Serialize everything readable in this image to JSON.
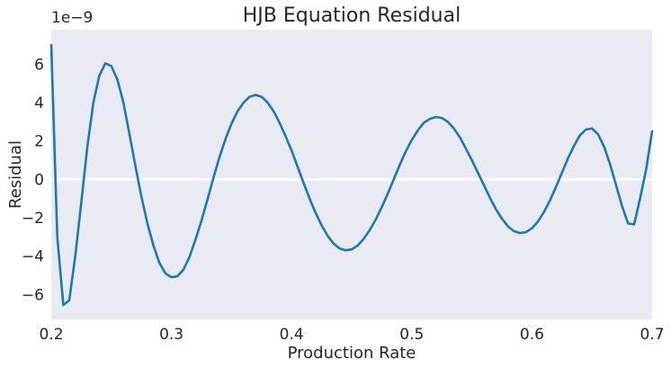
{
  "chart_data": {
    "type": "line",
    "title": "HJB Equation Residual",
    "xlabel": "Production Rate",
    "ylabel": "Residual",
    "y_offset_label": "1e−9",
    "xlim": [
      0.2,
      0.7
    ],
    "ylim": [
      -7.3,
      7.8
    ],
    "xticks": [
      0.2,
      0.3,
      0.4,
      0.5,
      0.6,
      0.7
    ],
    "xtick_labels": [
      "0.2",
      "0.3",
      "0.4",
      "0.5",
      "0.6",
      "0.7"
    ],
    "yticks": [
      -6,
      -4,
      -2,
      0,
      2,
      4,
      6
    ],
    "ytick_labels": [
      "−6",
      "−4",
      "−2",
      "0",
      "2",
      "4",
      "6"
    ],
    "grid": false,
    "background": "#eaeaf2",
    "zero_line": true,
    "series": [
      {
        "color": "#1f77b4",
        "x": [
          0.2,
          0.205,
          0.21,
          0.215,
          0.22,
          0.225,
          0.23,
          0.235,
          0.24,
          0.245,
          0.25,
          0.255,
          0.26,
          0.265,
          0.27,
          0.275,
          0.28,
          0.285,
          0.29,
          0.295,
          0.3,
          0.305,
          0.31,
          0.315,
          0.32,
          0.325,
          0.33,
          0.335,
          0.34,
          0.345,
          0.35,
          0.355,
          0.36,
          0.365,
          0.37,
          0.375,
          0.38,
          0.385,
          0.39,
          0.395,
          0.4,
          0.405,
          0.41,
          0.415,
          0.42,
          0.425,
          0.43,
          0.435,
          0.44,
          0.445,
          0.45,
          0.455,
          0.46,
          0.465,
          0.47,
          0.475,
          0.48,
          0.485,
          0.49,
          0.495,
          0.5,
          0.505,
          0.51,
          0.515,
          0.52,
          0.525,
          0.53,
          0.535,
          0.54,
          0.545,
          0.55,
          0.555,
          0.56,
          0.565,
          0.57,
          0.575,
          0.58,
          0.585,
          0.59,
          0.595,
          0.6,
          0.605,
          0.61,
          0.615,
          0.62,
          0.625,
          0.63,
          0.635,
          0.64,
          0.645,
          0.65,
          0.655,
          0.66,
          0.665,
          0.67,
          0.675,
          0.68,
          0.685,
          0.69,
          0.695,
          0.7
        ],
        "values": [
          7.0,
          -3.0,
          -6.55,
          -6.3,
          -4.0,
          -1.2,
          1.7,
          4.0,
          5.4,
          6.05,
          5.9,
          5.2,
          4.0,
          2.4,
          0.7,
          -0.9,
          -2.3,
          -3.45,
          -4.35,
          -4.9,
          -5.1,
          -5.05,
          -4.7,
          -4.05,
          -3.15,
          -2.15,
          -1.05,
          0.1,
          1.15,
          2.1,
          2.9,
          3.55,
          4.0,
          4.3,
          4.4,
          4.3,
          4.0,
          3.55,
          2.95,
          2.25,
          1.5,
          0.65,
          -0.2,
          -1.0,
          -1.75,
          -2.4,
          -2.95,
          -3.35,
          -3.6,
          -3.7,
          -3.65,
          -3.45,
          -3.1,
          -2.65,
          -2.1,
          -1.45,
          -0.75,
          0.0,
          0.75,
          1.45,
          2.05,
          2.55,
          2.95,
          3.15,
          3.25,
          3.2,
          3.0,
          2.65,
          2.2,
          1.6,
          1.0,
          0.35,
          -0.3,
          -0.95,
          -1.55,
          -2.05,
          -2.45,
          -2.7,
          -2.8,
          -2.75,
          -2.55,
          -2.2,
          -1.7,
          -1.1,
          -0.4,
          0.35,
          1.1,
          1.75,
          2.3,
          2.6,
          2.65,
          2.35,
          1.7,
          0.8,
          -0.3,
          -1.4,
          -2.3,
          -2.35,
          -1.0,
          0.5,
          2.5
        ]
      }
    ]
  }
}
